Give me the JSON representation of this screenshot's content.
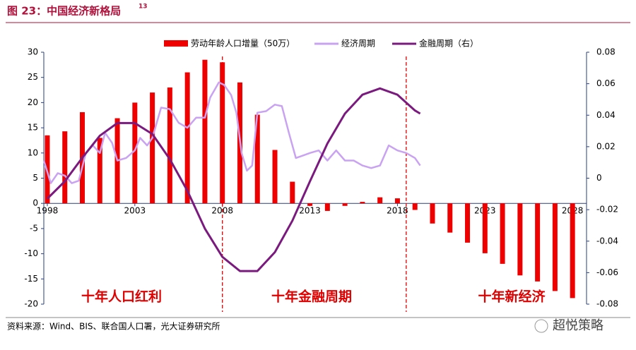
{
  "chart_data": {
    "type": "bar",
    "title": "图 23：中国经济新格局",
    "title_superscript": "13",
    "source": "资料来源：Wind、BIS、联合国人口署，光大证券研究所",
    "watermark": "超悦策略",
    "annotations": [
      "十年人口红利",
      "十年金融周期",
      "十年新经济"
    ],
    "dividers": [
      2008,
      2018.5
    ],
    "xlim": [
      1997.8,
      2028.8
    ],
    "xticks": [
      1998,
      2003,
      2008,
      2013,
      2018,
      2023,
      2028
    ],
    "ylim": [
      -20,
      30
    ],
    "yticks": [
      30,
      25,
      20,
      15,
      10,
      5,
      0,
      -5,
      -10,
      -15,
      -20
    ],
    "y2lim": [
      -0.08,
      0.08
    ],
    "y2ticks": [
      0.08,
      0.06,
      0.04,
      0.02,
      0,
      -0.02,
      -0.04,
      -0.06,
      -0.08
    ],
    "series": [
      {
        "name": "劳动年龄人口增量（50万）",
        "type": "bar",
        "color": "#ee0000",
        "x": [
          1998,
          1999,
          2000,
          2001,
          2002,
          2003,
          2004,
          2005,
          2006,
          2007,
          2008,
          2009,
          2010,
          2011,
          2012,
          2013,
          2014,
          2015,
          2016,
          2017,
          2018,
          2019,
          2020,
          2021,
          2022,
          2023,
          2024,
          2025,
          2026,
          2027,
          2028
        ],
        "values": [
          13.5,
          14.3,
          18.1,
          13,
          16.9,
          20,
          22,
          23,
          26,
          28.5,
          28,
          24,
          17.6,
          10.6,
          4.3,
          -0.5,
          -1.5,
          -0.5,
          0.3,
          1.2,
          1,
          -1.3,
          -4,
          -5.8,
          -7.8,
          -9.9,
          -12,
          -14.3,
          -15.5,
          -17.4,
          -18.8
        ]
      },
      {
        "name": "经济周期",
        "type": "line",
        "color": "#c9a3f2",
        "x": [
          1997.8,
          1998.2,
          1998.6,
          1999,
          1999.4,
          1999.8,
          2000.2,
          2000.6,
          2001,
          2001.3,
          2001.7,
          2002,
          2002.5,
          2003,
          2003.3,
          2003.7,
          2004,
          2004.5,
          2005,
          2005.5,
          2006,
          2006.5,
          2007,
          2007.3,
          2007.8,
          2008.1,
          2008.5,
          2008.8,
          2009.1,
          2009.4,
          2009.7,
          2010,
          2010.5,
          2011,
          2011.4,
          2011.8,
          2012.2,
          2012.6,
          2013,
          2013.5,
          2014,
          2014.5,
          2015,
          2015.5,
          2016,
          2016.5,
          2017,
          2017.5,
          2018,
          2018.5,
          2019,
          2019.3
        ],
        "values": [
          8.5,
          4,
          6,
          5.5,
          4,
          4.5,
          10,
          11.5,
          10,
          14,
          12,
          8.5,
          9,
          10.5,
          13,
          11.5,
          13,
          19,
          18.7,
          16,
          15,
          17,
          17,
          21,
          24,
          23.5,
          21.5,
          18,
          10,
          6.5,
          7.5,
          18,
          18.3,
          19.6,
          19.3,
          14,
          9,
          9.5,
          10,
          10.5,
          8.5,
          10.5,
          8.5,
          8.5,
          7.5,
          7,
          7.5,
          11.5,
          10.5,
          10,
          9,
          7.5
        ]
      },
      {
        "name": "金融周期（右）",
        "type": "line",
        "axis": "y2",
        "color": "#7b1a7e",
        "x": [
          1998,
          1999,
          2000,
          2001,
          2002,
          2003,
          2004,
          2005,
          2006,
          2007,
          2008,
          2009,
          2010,
          2011,
          2012,
          2013,
          2014,
          2015,
          2016,
          2017,
          2018,
          2019,
          2019.3
        ],
        "values": [
          -0.013,
          -0.002,
          0.013,
          0.027,
          0.035,
          0.035,
          0.028,
          0.012,
          -0.008,
          -0.032,
          -0.05,
          -0.059,
          -0.059,
          -0.047,
          -0.027,
          -0.002,
          0.022,
          0.041,
          0.053,
          0.057,
          0.053,
          0.043,
          0.041
        ]
      }
    ]
  }
}
